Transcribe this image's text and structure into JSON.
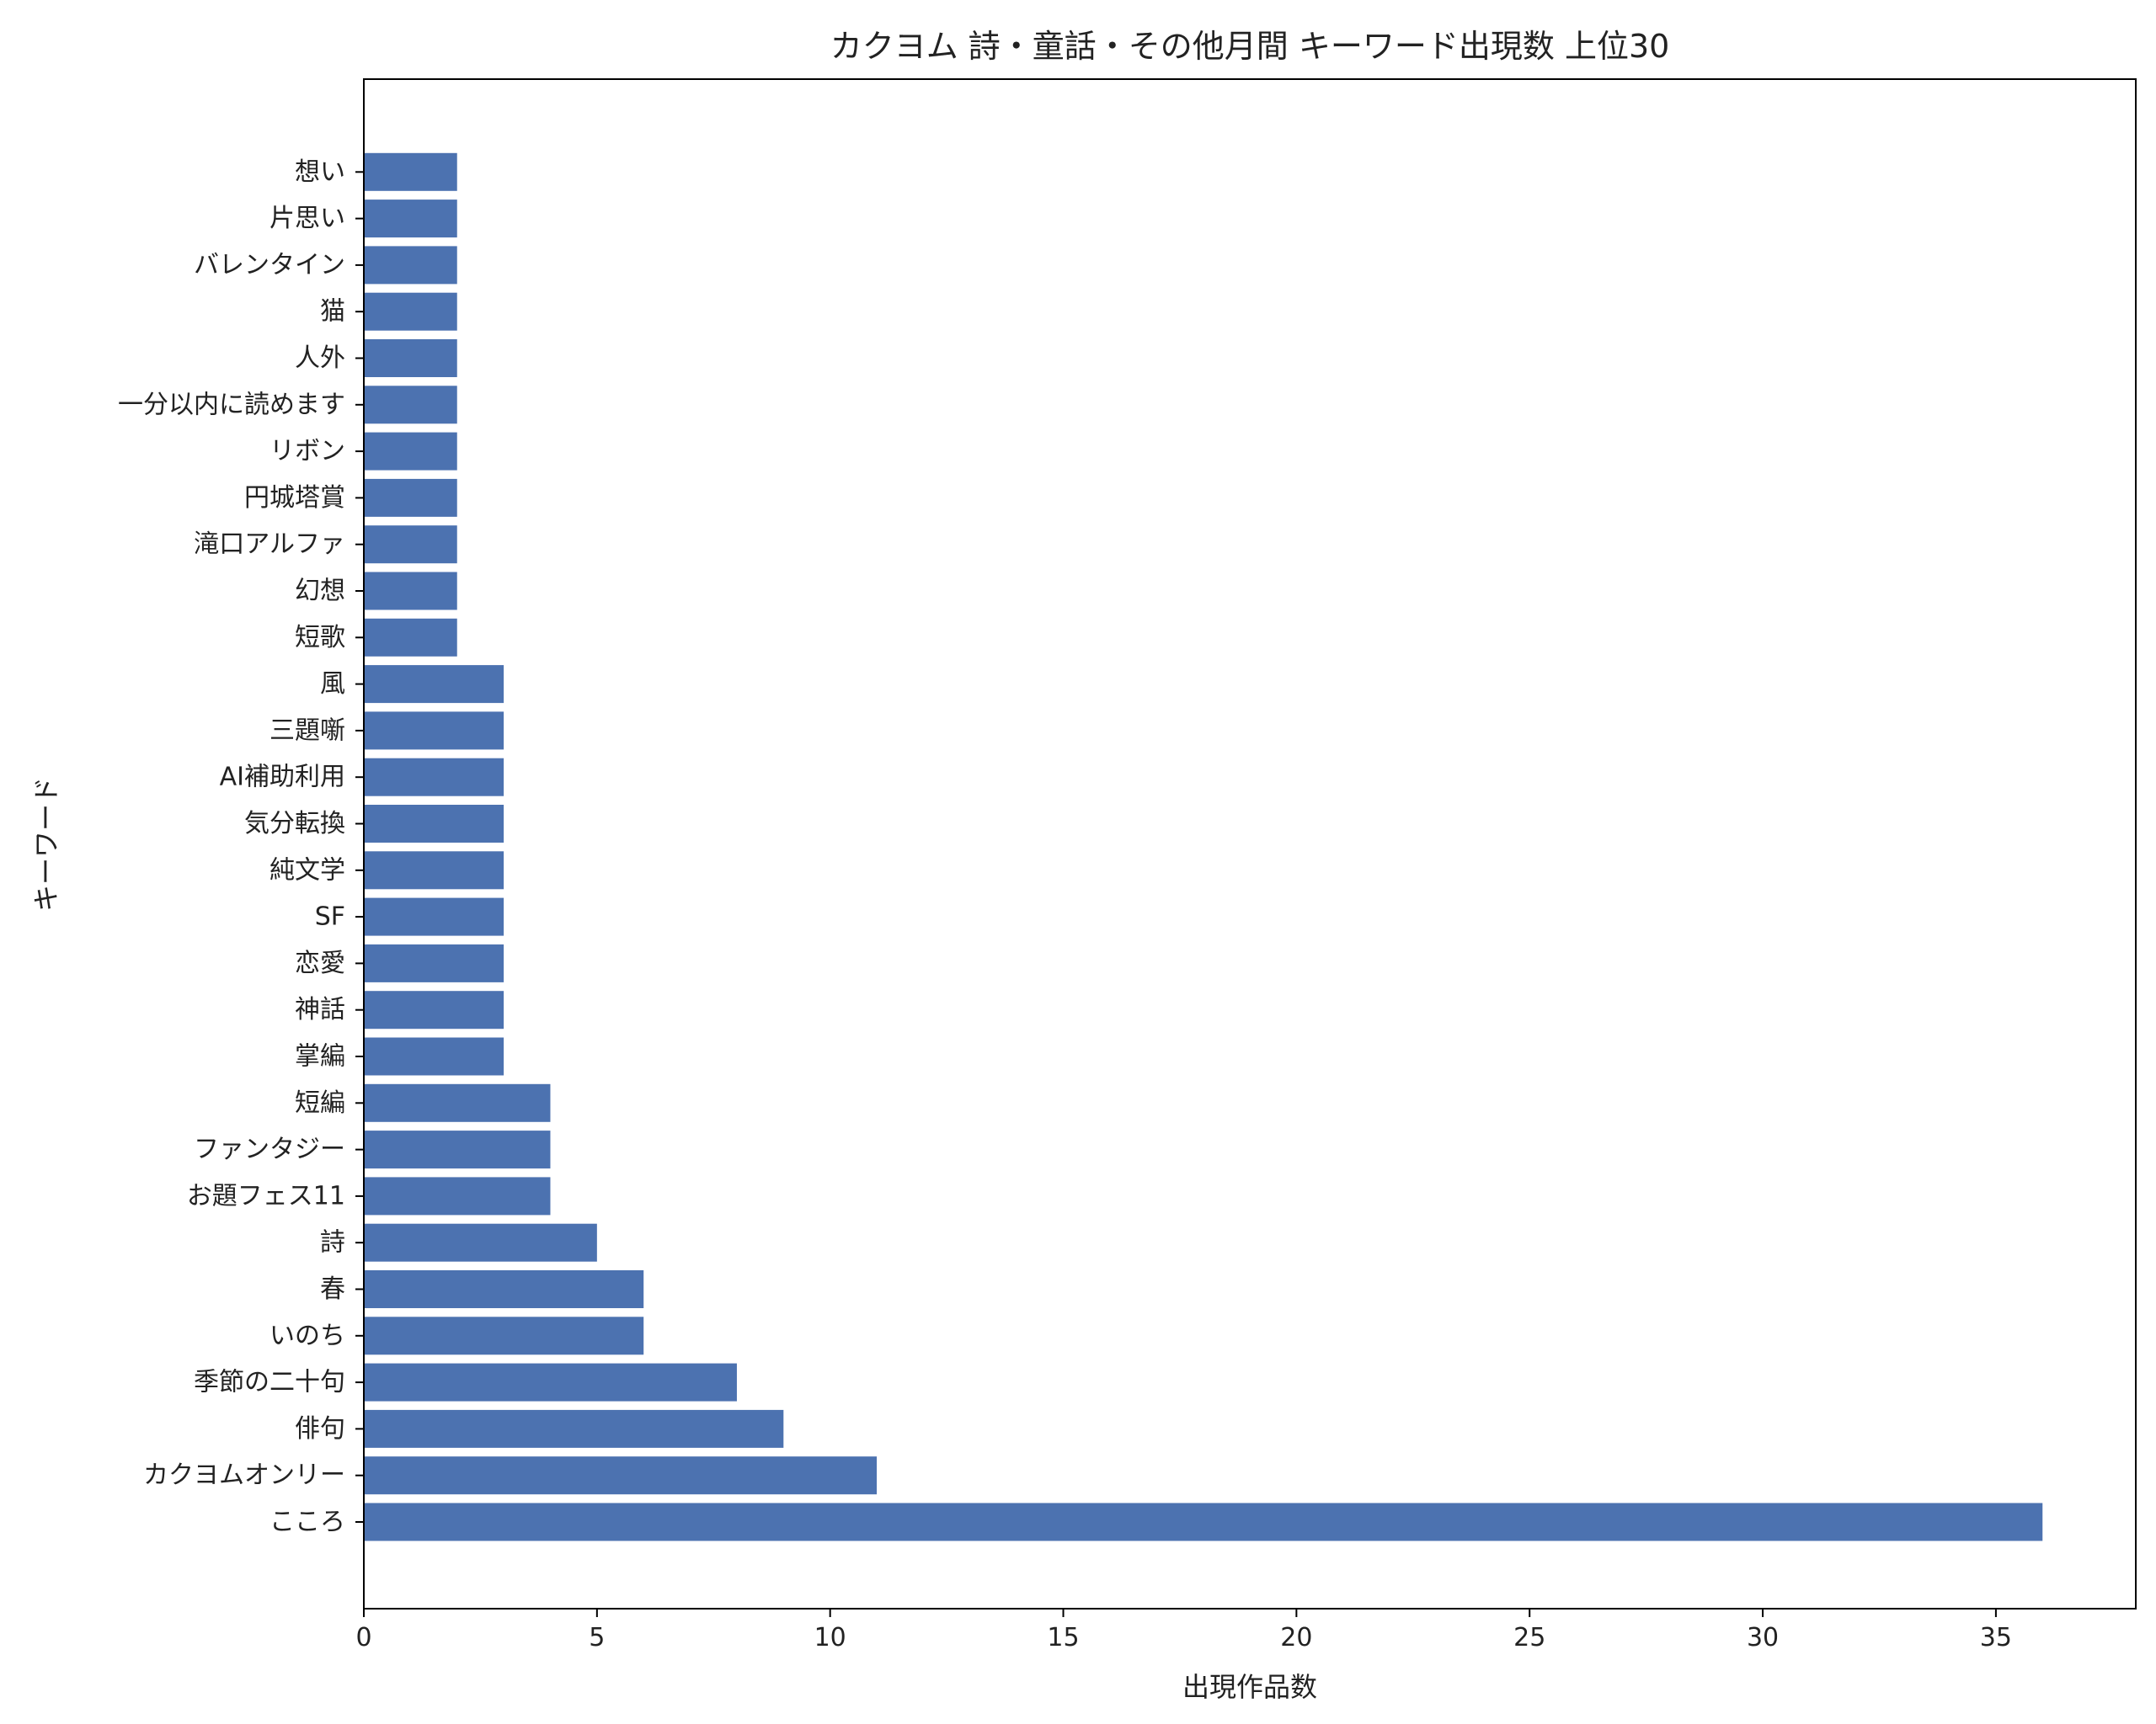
{
  "chart_data": {
    "type": "bar",
    "orientation": "horizontal",
    "title": "カクヨム 詩・童話・その他月間 キーワード出現数 上位30",
    "xlabel": "出現作品数",
    "ylabel": "キーワード",
    "xlim": [
      0,
      38
    ],
    "xticks": [
      0,
      5,
      10,
      15,
      20,
      25,
      30,
      35
    ],
    "grid": false,
    "bar_color": "#4c72b0",
    "categories": [
      "こころ",
      "カクヨムオンリー",
      "俳句",
      "季節の二十句",
      "いのち",
      "春",
      "詩",
      "お題フェス11",
      "ファンタジー",
      "短編",
      "掌編",
      "神話",
      "恋愛",
      "SF",
      "純文学",
      "気分転換",
      "AI補助利用",
      "三題噺",
      "風",
      "短歌",
      "幻想",
      "滝口アルファ",
      "円城塔賞",
      "リボン",
      "一分以内に読めます",
      "人外",
      "猫",
      "バレンタイン",
      "片思い",
      "想い"
    ],
    "values": [
      36,
      11,
      9,
      8,
      6,
      6,
      5,
      4,
      4,
      4,
      3,
      3,
      3,
      3,
      3,
      3,
      3,
      3,
      3,
      2,
      2,
      2,
      2,
      2,
      2,
      2,
      2,
      2,
      2,
      2
    ]
  }
}
